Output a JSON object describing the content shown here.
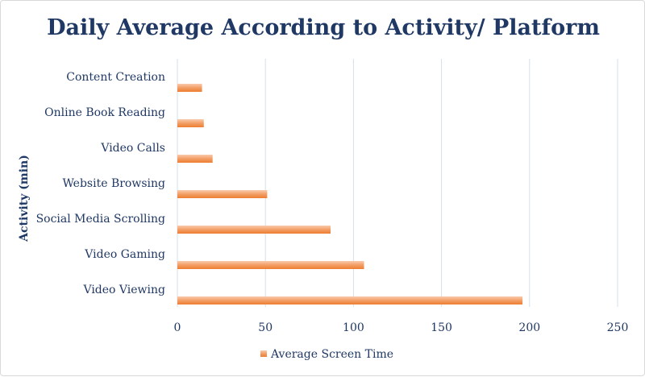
{
  "chart_data": {
    "type": "bar",
    "orientation": "horizontal",
    "title": "Daily Average According to Activity/ Platform",
    "xlabel": "",
    "ylabel": "Activity (min)",
    "categories": [
      "Content Creation",
      "Online Book Reading",
      "Video Calls",
      "Website Browsing",
      "Social Media Scrolling",
      "Video Gaming",
      "Video Viewing"
    ],
    "series": [
      {
        "name": "Average Screen Time",
        "color": "#f4b183",
        "values": [
          14,
          15,
          20,
          51,
          87,
          106,
          196
        ]
      }
    ],
    "xlim": [
      0,
      250
    ],
    "xticks": [
      0,
      50,
      100,
      150,
      200,
      250
    ],
    "grid": "vertical",
    "legend_position": "bottom"
  }
}
